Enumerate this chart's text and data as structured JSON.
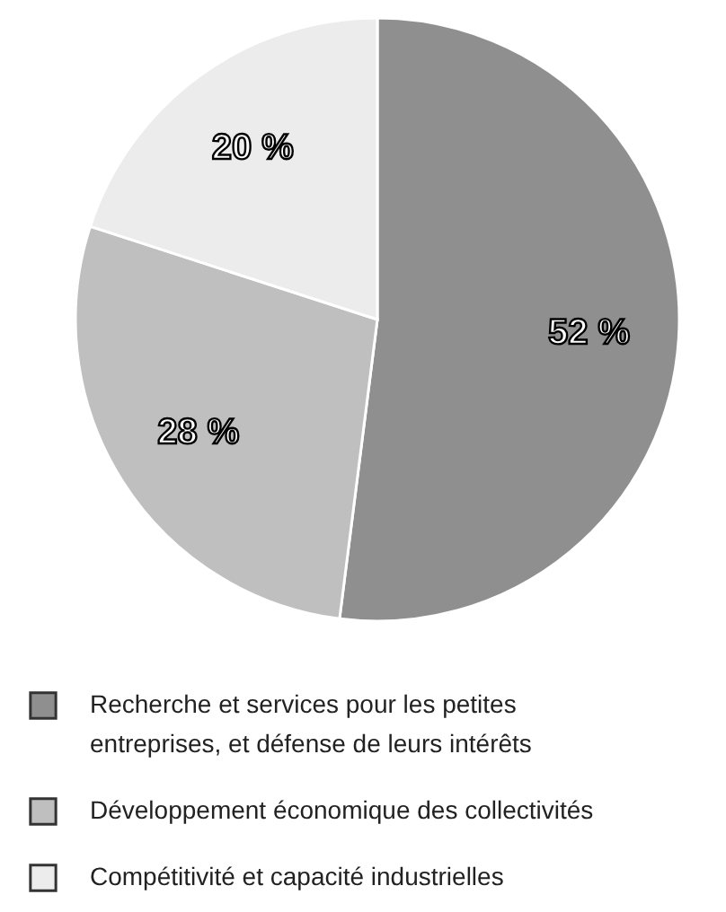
{
  "chart_data": {
    "type": "pie",
    "categories": [
      "Recherche et services pour les petites entreprises, et défense de leurs intérêts",
      "Développement économique des collectivités",
      "Compétitivité et capacité industrielles"
    ],
    "values": [
      52,
      28,
      20
    ],
    "value_labels": [
      "52 %",
      "28 %",
      "20 %"
    ],
    "colors": [
      "#8f8f8f",
      "#bfbfbf",
      "#ececec"
    ],
    "legend": "bottom"
  }
}
